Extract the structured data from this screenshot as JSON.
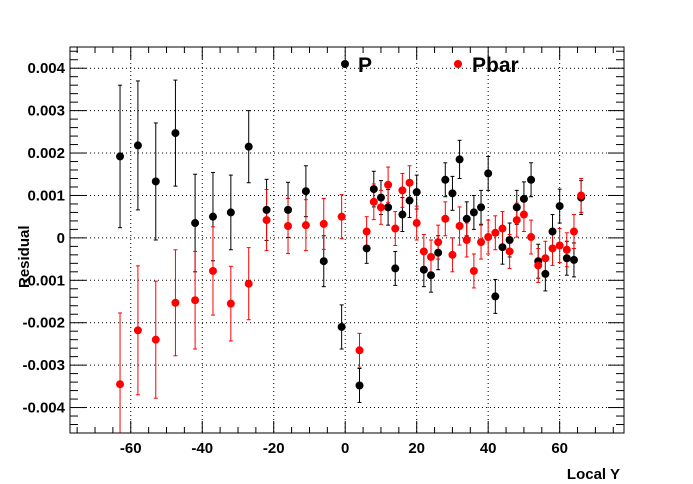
{
  "chart_data": {
    "type": "scatter",
    "title": "",
    "xlabel": "Local Y",
    "ylabel": "Residual",
    "xlim": [
      -77,
      78
    ],
    "ylim": [
      -0.0046,
      0.0045
    ],
    "grid": true,
    "legend_position": "top",
    "x_ticks": [
      -60,
      -40,
      -20,
      0,
      20,
      40,
      60
    ],
    "x_tick_labels": [
      "-60",
      "-40",
      "-20",
      "0",
      "20",
      "40",
      "60"
    ],
    "y_ticks": [
      -0.004,
      -0.003,
      -0.002,
      -0.001,
      0,
      0.001,
      0.002,
      0.003,
      0.004
    ],
    "y_tick_labels": [
      "-0.004",
      "-0.003",
      "-0.002",
      "-0.001",
      "0",
      "0.001",
      "0.002",
      "0.003",
      "0.004"
    ],
    "series": [
      {
        "name": "P",
        "color": "#000000",
        "points": [
          {
            "x": -63,
            "y": 0.00192,
            "err": 0.00168
          },
          {
            "x": -58,
            "y": 0.00218,
            "err": 0.00152
          },
          {
            "x": -53,
            "y": 0.00133,
            "err": 0.00138
          },
          {
            "x": -47.5,
            "y": 0.00247,
            "err": 0.00125
          },
          {
            "x": -42,
            "y": 0.00035,
            "err": 0.00115
          },
          {
            "x": -37,
            "y": 0.0005,
            "err": 0.00104
          },
          {
            "x": -32,
            "y": 0.0006,
            "err": 0.00088
          },
          {
            "x": -27,
            "y": 0.00215,
            "err": 0.00085
          },
          {
            "x": -22,
            "y": 0.00066,
            "err": 0.00072
          },
          {
            "x": -16,
            "y": 0.00066,
            "err": 0.00065
          },
          {
            "x": -11,
            "y": 0.0011,
            "err": 0.0006
          },
          {
            "x": -6,
            "y": -0.00055,
            "err": 0.0006
          },
          {
            "x": -1,
            "y": -0.0021,
            "err": 0.00052
          },
          {
            "x": 4,
            "y": -0.00348,
            "err": 0.0004
          },
          {
            "x": 6,
            "y": -0.00025,
            "err": 0.00035
          },
          {
            "x": 8,
            "y": 0.00115,
            "err": 0.00042
          },
          {
            "x": 10,
            "y": 0.00095,
            "err": 0.0004
          },
          {
            "x": 12,
            "y": 0.00072,
            "err": 0.00042
          },
          {
            "x": 14,
            "y": -0.00072,
            "err": 0.0004
          },
          {
            "x": 16,
            "y": 0.00055,
            "err": 0.0004
          },
          {
            "x": 18,
            "y": 0.00088,
            "err": 0.0004
          },
          {
            "x": 20,
            "y": 0.00108,
            "err": 0.0004
          },
          {
            "x": 22,
            "y": -0.00075,
            "err": 0.0004
          },
          {
            "x": 24,
            "y": -0.00088,
            "err": 0.0004
          },
          {
            "x": 26,
            "y": -0.00035,
            "err": 0.0004
          },
          {
            "x": 28,
            "y": 0.00137,
            "err": 0.0004
          },
          {
            "x": 30,
            "y": 0.00105,
            "err": 0.0004
          },
          {
            "x": 32,
            "y": 0.00185,
            "err": 0.00045
          },
          {
            "x": 34,
            "y": 0.00045,
            "err": 0.0004
          },
          {
            "x": 36,
            "y": 0.0006,
            "err": 0.0004
          },
          {
            "x": 38,
            "y": 0.00072,
            "err": 0.0004
          },
          {
            "x": 40,
            "y": 0.00152,
            "err": 0.0004
          },
          {
            "x": 42,
            "y": -0.00138,
            "err": 0.0004
          },
          {
            "x": 44,
            "y": -0.00022,
            "err": 0.0004
          },
          {
            "x": 46,
            "y": -5e-05,
            "err": 0.0004
          },
          {
            "x": 48,
            "y": 0.00072,
            "err": 0.0004
          },
          {
            "x": 50,
            "y": 0.00092,
            "err": 0.0004
          },
          {
            "x": 52,
            "y": 0.00137,
            "err": 0.0004
          },
          {
            "x": 54,
            "y": -0.00055,
            "err": 0.0004
          },
          {
            "x": 56,
            "y": -0.00085,
            "err": 0.0004
          },
          {
            "x": 58,
            "y": 0.00015,
            "err": 0.0004
          },
          {
            "x": 60,
            "y": 0.00075,
            "err": 0.0004
          },
          {
            "x": 62,
            "y": -0.00048,
            "err": 0.0004
          },
          {
            "x": 64,
            "y": -0.00052,
            "err": 0.0004
          },
          {
            "x": 66,
            "y": 0.00095,
            "err": 0.0004
          }
        ]
      },
      {
        "name": "Pbar",
        "color": "#ff0000",
        "points": [
          {
            "x": -63,
            "y": -0.00345,
            "err": 0.00168
          },
          {
            "x": -58,
            "y": -0.00218,
            "err": 0.00152
          },
          {
            "x": -53,
            "y": -0.0024,
            "err": 0.00138
          },
          {
            "x": -47.5,
            "y": -0.00153,
            "err": 0.00125
          },
          {
            "x": -42,
            "y": -0.00147,
            "err": 0.00115
          },
          {
            "x": -37,
            "y": -0.00078,
            "err": 0.00104
          },
          {
            "x": -32,
            "y": -0.00155,
            "err": 0.00088
          },
          {
            "x": -27,
            "y": -0.00108,
            "err": 0.00085
          },
          {
            "x": -22,
            "y": 0.00042,
            "err": 0.00072
          },
          {
            "x": -16,
            "y": 0.00028,
            "err": 0.00065
          },
          {
            "x": -11,
            "y": 0.0003,
            "err": 0.0006
          },
          {
            "x": -6,
            "y": 0.00033,
            "err": 0.0006
          },
          {
            "x": -1,
            "y": 0.0005,
            "err": 0.00052
          },
          {
            "x": 4,
            "y": -0.00265,
            "err": 0.0004
          },
          {
            "x": 6,
            "y": 0.00015,
            "err": 0.00035
          },
          {
            "x": 8,
            "y": 0.00085,
            "err": 0.00042
          },
          {
            "x": 10,
            "y": 0.00072,
            "err": 0.0004
          },
          {
            "x": 12,
            "y": 0.00125,
            "err": 0.00042
          },
          {
            "x": 14,
            "y": 0.00022,
            "err": 0.0004
          },
          {
            "x": 16,
            "y": 0.00112,
            "err": 0.0004
          },
          {
            "x": 18,
            "y": 0.0013,
            "err": 0.0004
          },
          {
            "x": 20,
            "y": 0.00035,
            "err": 0.0004
          },
          {
            "x": 22,
            "y": -0.00032,
            "err": 0.0004
          },
          {
            "x": 24,
            "y": -0.00045,
            "err": 0.0004
          },
          {
            "x": 26,
            "y": -0.0001,
            "err": 0.0004
          },
          {
            "x": 28,
            "y": 0.00045,
            "err": 0.0004
          },
          {
            "x": 30,
            "y": -0.0004,
            "err": 0.0004
          },
          {
            "x": 32,
            "y": 0.00028,
            "err": 0.00045
          },
          {
            "x": 34,
            "y": -5e-05,
            "err": 0.0004
          },
          {
            "x": 36,
            "y": -0.00078,
            "err": 0.0004
          },
          {
            "x": 38,
            "y": -0.0001,
            "err": 0.0004
          },
          {
            "x": 40,
            "y": 2e-05,
            "err": 0.0004
          },
          {
            "x": 42,
            "y": 0.00012,
            "err": 0.0004
          },
          {
            "x": 44,
            "y": 0.00022,
            "err": 0.0004
          },
          {
            "x": 46,
            "y": -0.00032,
            "err": 0.0004
          },
          {
            "x": 48,
            "y": 0.00042,
            "err": 0.0004
          },
          {
            "x": 50,
            "y": 0.00055,
            "err": 0.0004
          },
          {
            "x": 52,
            "y": 2e-05,
            "err": 0.0004
          },
          {
            "x": 54,
            "y": -0.00065,
            "err": 0.0004
          },
          {
            "x": 56,
            "y": -0.00048,
            "err": 0.0004
          },
          {
            "x": 58,
            "y": -0.00025,
            "err": 0.0004
          },
          {
            "x": 60,
            "y": -0.00018,
            "err": 0.0004
          },
          {
            "x": 62,
            "y": -0.00028,
            "err": 0.0004
          },
          {
            "x": 64,
            "y": 0.00015,
            "err": 0.0004
          },
          {
            "x": 66,
            "y": 0.001,
            "err": 0.0004
          }
        ]
      }
    ]
  }
}
